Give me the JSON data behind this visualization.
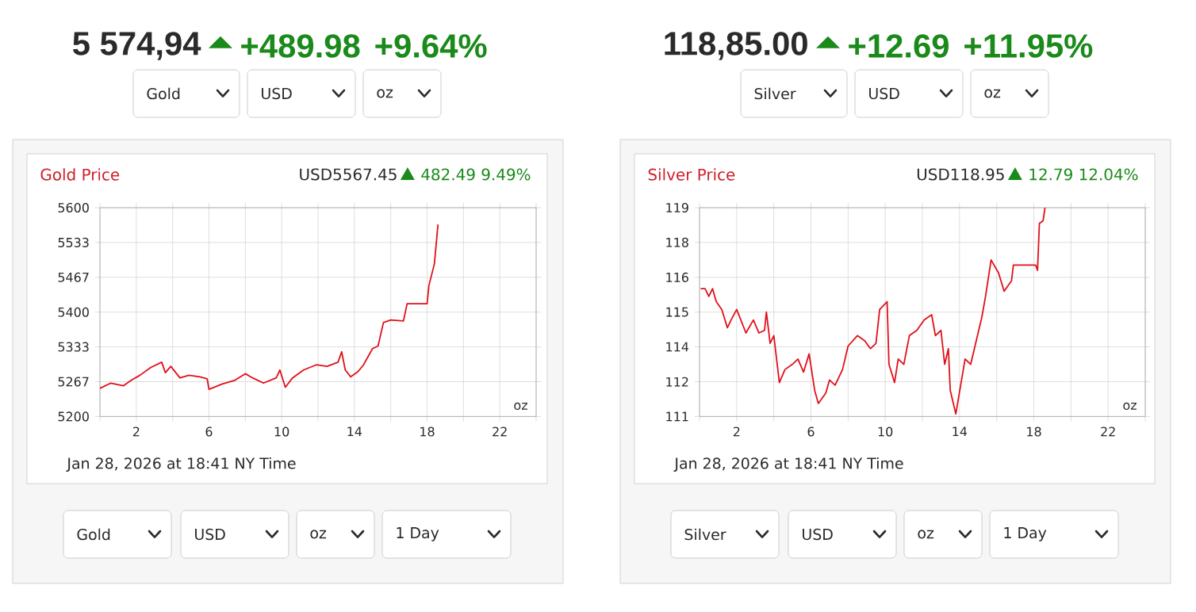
{
  "chart_data": [
    {
      "type": "line",
      "title": "Gold Price",
      "subtitle": "USD5567.45",
      "annotations": [
        "5 574,94",
        "+489.98",
        "+9.64%",
        "Gold",
        "USD",
        "oz",
        "482.49 9.49%",
        "oz",
        "Jan 28, 2026 at 18:41 NY Time",
        "Gold",
        "USD",
        "oz",
        "1 Day"
      ],
      "series": [
        {
          "color": "#e0101a",
          "x": [
            0,
            0.6,
            1.3,
            1.7,
            2.2,
            2.8,
            3.4,
            3.6,
            3.9,
            4.4,
            4.9,
            5.5,
            5.9,
            6.0,
            6.7,
            7.4,
            8.0,
            8.4,
            9.0,
            9.7,
            9.9,
            10.2,
            10.6,
            11.2,
            11.9,
            12.5,
            13.1,
            13.3,
            13.5,
            13.8,
            14.2,
            14.5,
            15.0,
            15.3,
            15.6,
            16.0,
            16.7,
            16.9,
            18.0,
            18.1,
            18.4,
            18.6
          ],
          "values": [
            5254,
            5264,
            5259,
            5269,
            5279,
            5294,
            5304,
            5284,
            5296,
            5274,
            5279,
            5276,
            5272,
            5252,
            5262,
            5269,
            5282,
            5274,
            5264,
            5274,
            5289,
            5256,
            5274,
            5289,
            5299,
            5296,
            5304,
            5324,
            5289,
            5276,
            5286,
            5299,
            5330,
            5335,
            5380,
            5385,
            5383,
            5416,
            5416,
            5451,
            5492,
            5568
          ]
        }
      ],
      "xlim": [
        0,
        24
      ],
      "ylim": [
        5200,
        5600
      ],
      "xticks": [
        {
          "value": 0,
          "label": null
        },
        2,
        {
          "value": 4,
          "label": null
        },
        6,
        {
          "value": 8,
          "label": null
        },
        10,
        {
          "value": 12,
          "label": null
        },
        14,
        {
          "value": 16,
          "label": null
        },
        18,
        {
          "value": 20,
          "label": null
        },
        22,
        {
          "value": 24,
          "label": null
        }
      ],
      "yticks": [
        5200,
        {
          "value": 5266.67,
          "label": "5267"
        },
        {
          "value": 5333.33,
          "label": "5333"
        },
        5400,
        {
          "value": 5466.67,
          "label": "5467"
        },
        {
          "value": 5533.33,
          "label": "5533"
        },
        5600
      ],
      "grid": true
    },
    {
      "type": "line",
      "title": "Silver Price",
      "subtitle": "USD118.95",
      "annotations": [
        "118,85.00",
        "+12.69",
        "+11.95%",
        "Silver",
        "USD",
        "oz",
        "12.79 12.04%",
        "oz",
        "Jan 28, 2026 at 18:41 NY Time",
        "Silver",
        "USD",
        "oz",
        "1 Day"
      ],
      "series": [
        {
          "color": "#e0101a",
          "x": [
            0.06,
            0.3,
            0.5,
            0.7,
            0.9,
            1.2,
            1.5,
            1.7,
            2.0,
            2.5,
            2.9,
            3.2,
            3.5,
            3.6,
            3.8,
            4.0,
            4.3,
            4.6,
            5.0,
            5.3,
            5.6,
            5.9,
            6.2,
            6.4,
            6.8,
            7.0,
            7.3,
            7.7,
            8.0,
            8.5,
            8.9,
            9.2,
            9.5,
            9.7,
            10.1,
            10.2,
            10.5,
            10.7,
            11.0,
            11.3,
            11.7,
            12.1,
            12.5,
            12.7,
            13.0,
            13.2,
            13.4,
            13.5,
            13.8,
            14.3,
            14.6,
            15.2,
            15.4,
            15.7,
            16.1,
            16.4,
            16.8,
            16.9,
            18.1,
            18.2,
            18.3,
            18.5,
            18.6
          ],
          "values": [
            115.9,
            115.9,
            115.6,
            115.9,
            115.4,
            115.1,
            114.4,
            114.7,
            115.1,
            114.2,
            114.7,
            114.2,
            114.3,
            115.0,
            113.8,
            114.1,
            112.3,
            112.8,
            113.0,
            113.2,
            112.7,
            113.4,
            112.0,
            111.5,
            111.9,
            112.4,
            112.2,
            112.8,
            113.7,
            114.1,
            113.9,
            113.6,
            113.8,
            115.1,
            115.4,
            113.0,
            112.3,
            113.2,
            113.0,
            114.1,
            114.3,
            114.7,
            114.9,
            114.1,
            114.3,
            113.0,
            113.6,
            112.0,
            111.1,
            113.2,
            113.0,
            114.8,
            115.6,
            117.0,
            116.5,
            115.8,
            116.2,
            116.8,
            116.8,
            116.6,
            118.4,
            118.5,
            119.0
          ]
        }
      ],
      "xlim": [
        0,
        24
      ],
      "ylim": [
        111,
        119
      ],
      "xticks": [
        {
          "value": 0,
          "label": null
        },
        2,
        {
          "value": 4,
          "label": null
        },
        6,
        {
          "value": 8,
          "label": null
        },
        10,
        {
          "value": 12,
          "label": null
        },
        14,
        {
          "value": 16,
          "label": null
        },
        18,
        {
          "value": 20,
          "label": null
        },
        22,
        {
          "value": 24,
          "label": null
        }
      ],
      "yticks": [
        111,
        {
          "value": 112.33,
          "label": "112"
        },
        {
          "value": 113.67,
          "label": "114"
        },
        115,
        {
          "value": 116.33,
          "label": "116"
        },
        {
          "value": 117.67,
          "label": "118"
        },
        119
      ],
      "grid": true
    }
  ]
}
